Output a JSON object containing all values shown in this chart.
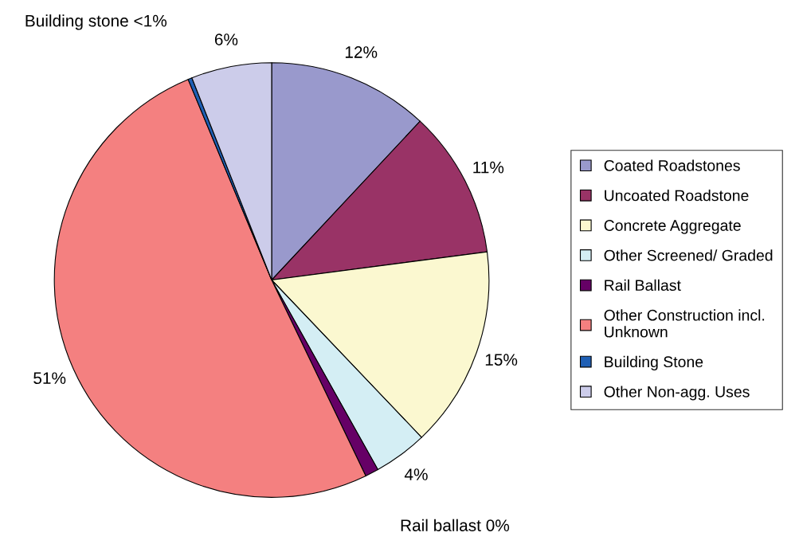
{
  "chart_data": {
    "type": "pie",
    "categories": [
      "Coated Roadstones",
      "Uncoated Roadstone",
      "Concrete Aggregate",
      "Other Screened/ Graded",
      "Rail Ballast",
      "Other Construction incl. Unknown",
      "Building Stone",
      "Other Non-agg. Uses"
    ],
    "values": [
      12,
      11,
      15,
      4,
      1,
      51,
      0.3,
      6
    ],
    "colors": [
      "#9999cc",
      "#993366",
      "#fbf8d0",
      "#d4eef4",
      "#660066",
      "#f48080",
      "#1f5fb4",
      "#ccccea"
    ],
    "value_labels": [
      "12%",
      "11%",
      "15%",
      "4%",
      "Rail ballast 0%",
      "51%",
      "Building stone <1%",
      "6%"
    ],
    "legend": "right"
  }
}
